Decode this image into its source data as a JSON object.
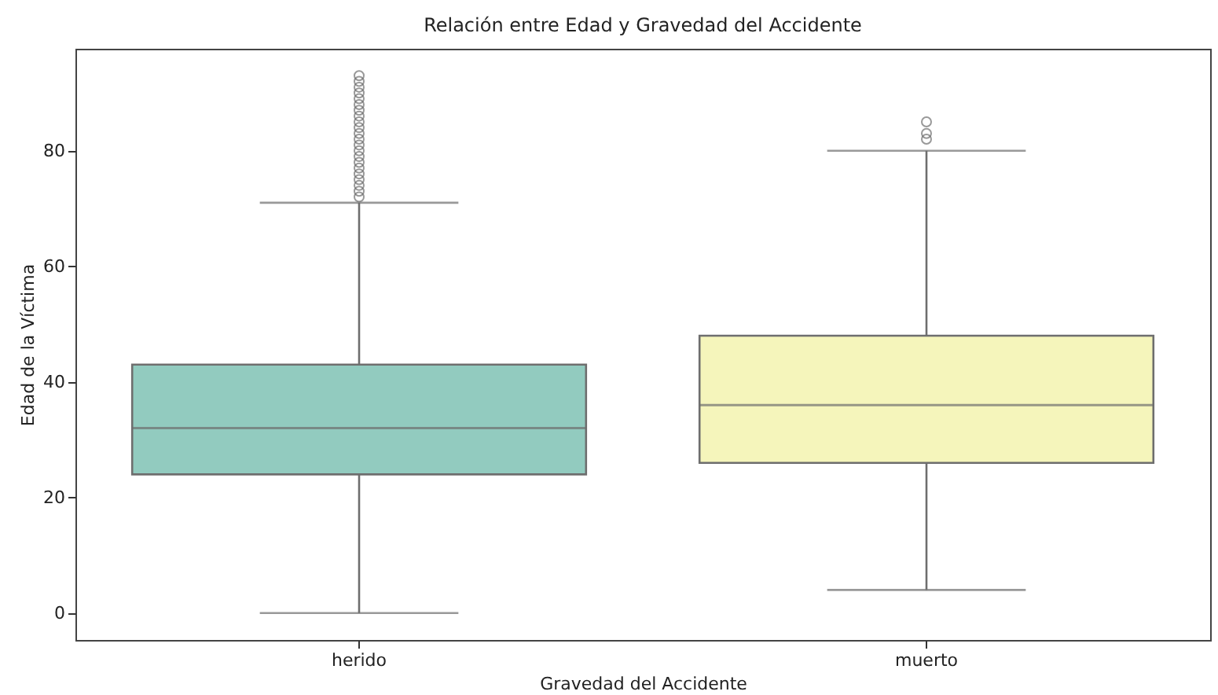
{
  "chart_data": {
    "type": "box",
    "title": "Relación entre Edad y Gravedad del Accidente",
    "xlabel": "Gravedad del Accidente",
    "ylabel": "Edad de la Víctima",
    "categories": [
      "herido",
      "muerto"
    ],
    "colors": [
      "#92cbbf",
      "#f5f5bb"
    ],
    "boxes": [
      {
        "low": 0,
        "q1": 24,
        "median": 32,
        "q3": 43,
        "high": 71,
        "outliers": [
          72,
          73,
          74,
          75,
          76,
          77,
          78,
          79,
          80,
          81,
          82,
          83,
          84,
          85,
          86,
          87,
          88,
          89,
          90,
          91,
          92,
          93
        ]
      },
      {
        "low": 4,
        "q1": 26,
        "median": 36,
        "q3": 48,
        "high": 80,
        "outliers": [
          82,
          83,
          85
        ]
      }
    ],
    "ylim": [
      -4.65,
      97.65
    ],
    "yticks": [
      0,
      20,
      40,
      60,
      80
    ],
    "grid": false
  }
}
